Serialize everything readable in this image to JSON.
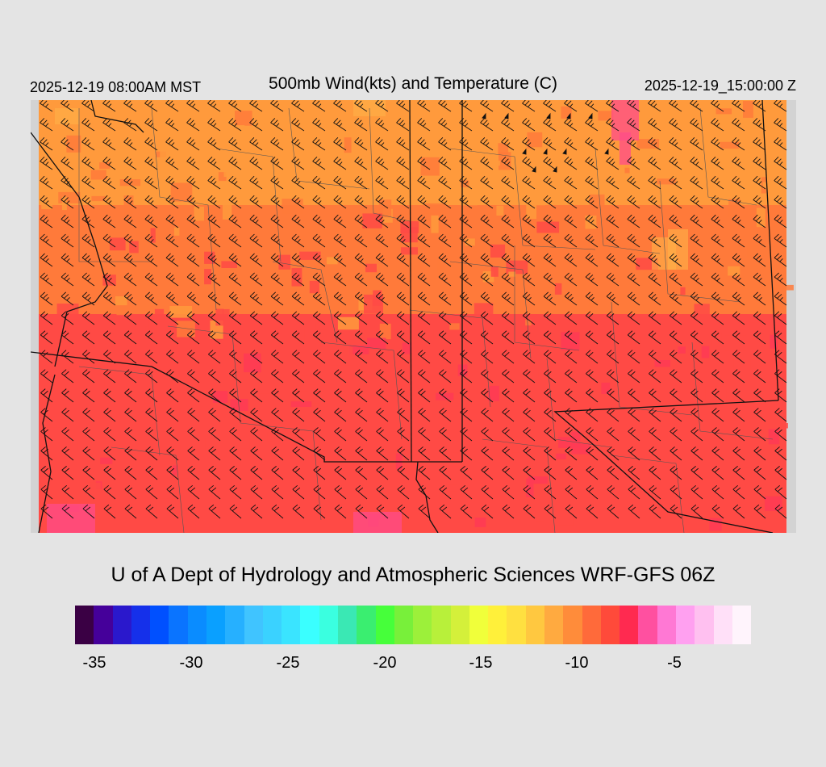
{
  "header": {
    "valid_local": "2025-12-19 08:00AM MST",
    "title": "500mb Wind(kts) and Temperature (C)",
    "valid_utc": "2025-12-19_15:00:00 Z"
  },
  "credit": "U of A Dept of Hydrology and Atmospheric Sciences WRF-GFS 06Z",
  "map": {
    "background": "#d3d3d3",
    "temperature_colors": {
      "cold_north": "#ff9a3c",
      "mid": "#ff7a3a",
      "warm_south": "#ff4a45",
      "warmest": "#ff3a55",
      "pink_patch": "#ff4c8a",
      "yellow_fleck": "#ffb347"
    },
    "border_color": "#111111",
    "county_color": "#555555",
    "barb_color": "#111111"
  },
  "colorbar": {
    "colors": [
      "#3a0044",
      "#45009a",
      "#2a18cc",
      "#1530ea",
      "#0050ff",
      "#0a74ff",
      "#0a8cff",
      "#0aa0ff",
      "#26b0ff",
      "#40c4ff",
      "#3ad2ff",
      "#3ae4ff",
      "#3affff",
      "#3affe0",
      "#3ae8b4",
      "#3aee70",
      "#46ff3a",
      "#78f03a",
      "#9cf03a",
      "#b8f03a",
      "#d4f03a",
      "#f0ff3a",
      "#fff03a",
      "#ffe040",
      "#ffc840",
      "#ffaa40",
      "#ff8c3a",
      "#ff6a3a",
      "#ff4a3a",
      "#ff2a50",
      "#ff50a0",
      "#ff78d4",
      "#ffa0f0",
      "#ffc0f0",
      "#ffe0f8",
      "#fff4fc"
    ],
    "labels": [
      "-35",
      "-30",
      "-25",
      "-20",
      "-15",
      "-10",
      "-5"
    ]
  }
}
